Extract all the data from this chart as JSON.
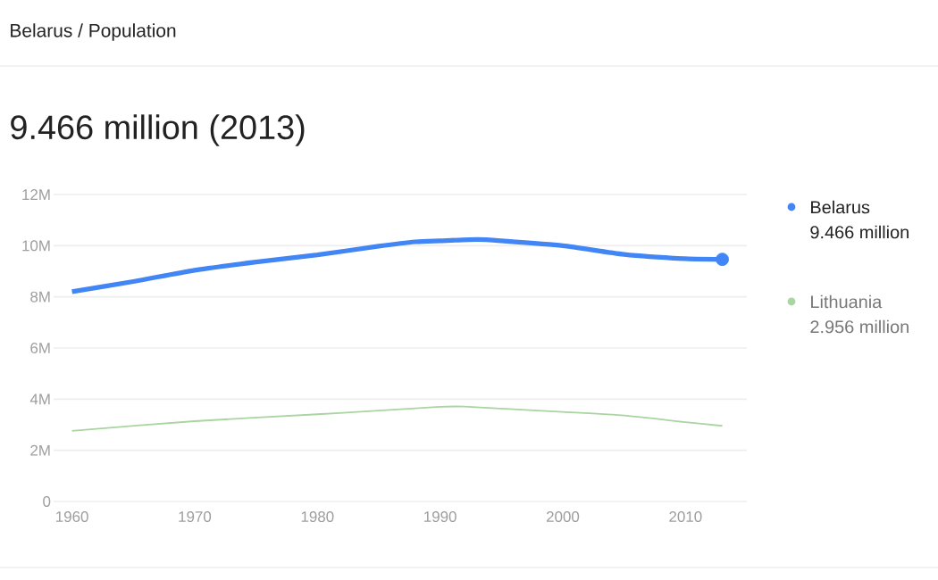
{
  "chart_data": {
    "type": "line",
    "subtitle": "Belarus / Population",
    "title": "9.466 million (2013)",
    "x": [
      1960,
      1965,
      1970,
      1975,
      1980,
      1985,
      1988,
      1990,
      1993,
      1995,
      2000,
      2005,
      2010,
      2013
    ],
    "series": [
      {
        "name": "Belarus",
        "color": "#4285f4",
        "values": [
          8.2,
          8.6,
          9.04,
          9.36,
          9.64,
          9.98,
          10.15,
          10.19,
          10.24,
          10.19,
          10.0,
          9.66,
          9.49,
          9.466
        ]
      },
      {
        "name": "Lithuania",
        "color": "#a8d5a0",
        "x": [
          1960,
          1970,
          1980,
          1985,
          1990,
          1992,
          1995,
          2000,
          2005,
          2010,
          2013
        ],
        "values": [
          2.76,
          3.14,
          3.41,
          3.55,
          3.7,
          3.71,
          3.63,
          3.5,
          3.36,
          3.1,
          2.956
        ]
      }
    ],
    "annotations": [
      "9.466 million",
      "2.956 million"
    ],
    "xlim": [
      1958.5,
      2015
    ],
    "ylim": [
      0,
      12
    ],
    "xticks": [
      1960,
      1970,
      1980,
      1990,
      2000,
      2010
    ],
    "yticks": [
      0,
      {
        "value": 2,
        "label": "2M"
      },
      {
        "value": 4,
        "label": "4M"
      },
      {
        "value": 6,
        "label": "6M"
      },
      {
        "value": 8,
        "label": "8M"
      },
      {
        "value": 10,
        "label": "10M"
      },
      {
        "value": 12,
        "label": "12M"
      }
    ],
    "grid": "y",
    "legend": "right"
  }
}
